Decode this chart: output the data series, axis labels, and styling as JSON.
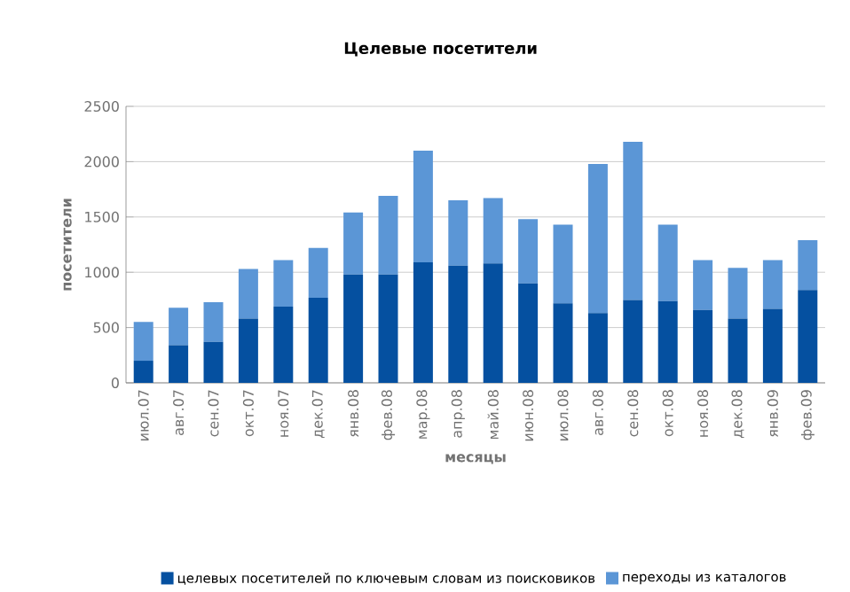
{
  "chart_data": {
    "type": "bar",
    "stacked": true,
    "title": "Целевые посетители",
    "xlabel": "месяцы",
    "ylabel": "посетители",
    "categories": [
      "июл.07",
      "авг.07",
      "сен.07",
      "окт.07",
      "ноя.07",
      "дек.07",
      "янв.08",
      "фев.08",
      "мар.08",
      "апр.08",
      "май.08",
      "июн.08",
      "июл.08",
      "авг.08",
      "сен.08",
      "окт.08",
      "ноя.08",
      "дек.08",
      "янв.09",
      "фев.09"
    ],
    "series": [
      {
        "name": "целевых посетителей по ключевым словам из поисковиков",
        "color": "#0550a0",
        "values": [
          200,
          340,
          370,
          580,
          690,
          770,
          980,
          980,
          1090,
          1060,
          1080,
          900,
          720,
          630,
          750,
          740,
          660,
          580,
          670,
          840
        ]
      },
      {
        "name": "переходы из каталогов",
        "color": "#5b96d6",
        "values": [
          350,
          340,
          360,
          450,
          420,
          450,
          560,
          710,
          1010,
          590,
          590,
          580,
          710,
          1350,
          1430,
          690,
          450,
          460,
          440,
          450
        ]
      }
    ],
    "ylim": [
      0,
      2500
    ],
    "yticks": [
      0,
      500,
      1000,
      1500,
      2000,
      2500
    ],
    "grid": "y",
    "legend": "bottom"
  }
}
